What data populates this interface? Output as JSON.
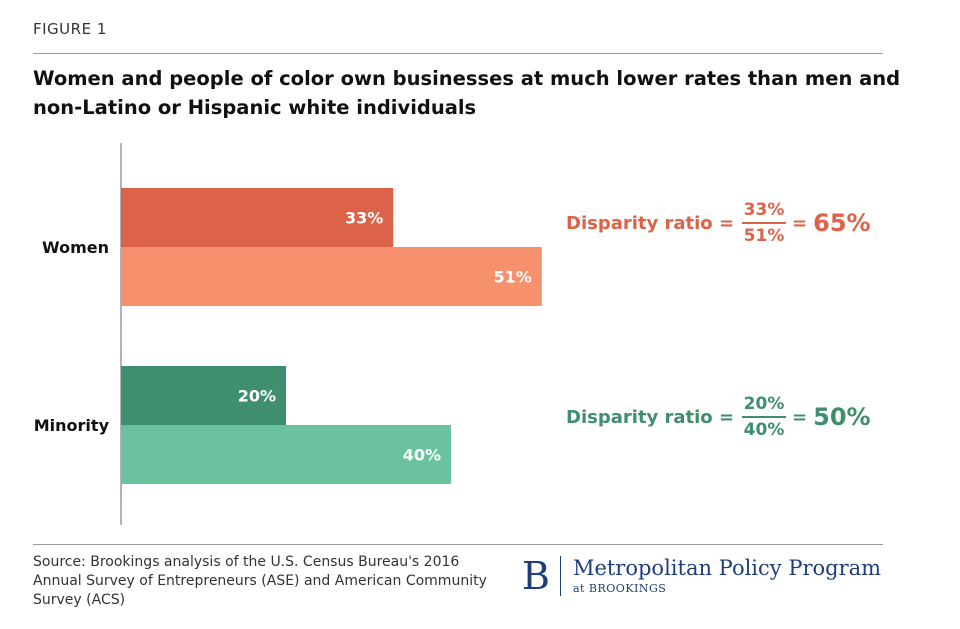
{
  "figure_label": "FIGURE 1",
  "title": "Women and people of color own businesses at much lower rates than men and non-Latino or Hispanic white individuals",
  "chart_data": {
    "type": "bar",
    "orientation": "horizontal",
    "categories": [
      "Women",
      "Minority"
    ],
    "series": [
      {
        "values": [
          33,
          20
        ]
      },
      {
        "values": [
          51,
          40
        ]
      }
    ],
    "value_labels": [
      [
        "33%",
        "51%"
      ],
      [
        "20%",
        "40%"
      ]
    ],
    "xlim": [
      0,
      100
    ],
    "grid": false,
    "colors": {
      "Women": [
        "#dc6347",
        "#f7916d"
      ],
      "Minority": [
        "#3f8f6e",
        "#6bc29f"
      ]
    }
  },
  "ratios": [
    {
      "label": "Disparity ratio =",
      "numerator": "33%",
      "denominator": "51%",
      "equals": "=",
      "result": "65%",
      "color": "#dc6347"
    },
    {
      "label": "Disparity ratio =",
      "numerator": "20%",
      "denominator": "40%",
      "equals": "=",
      "result": "50%",
      "color": "#3f8f6e"
    }
  ],
  "source": "Source: Brookings analysis of the U.S. Census Bureau's 2016 Annual Survey of Entrepreneurs (ASE) and American Community Survey (ACS)",
  "brand": {
    "logo_letter": "B",
    "program": "Metropolitan Policy Program",
    "at": "at BROOKINGS",
    "color": "#1f3d7a"
  }
}
